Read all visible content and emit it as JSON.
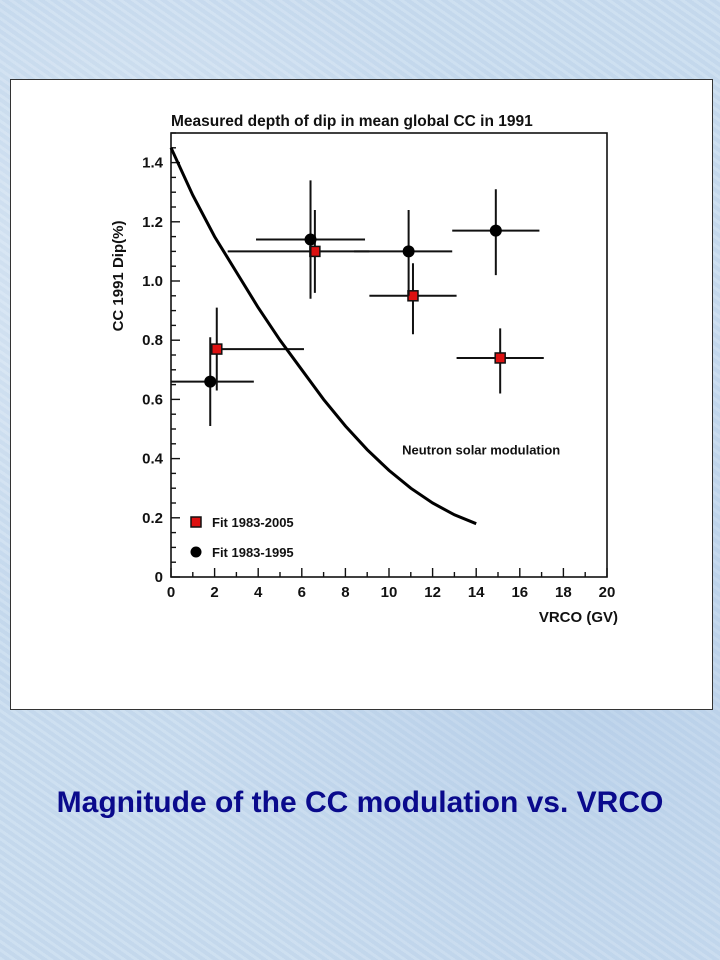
{
  "caption": "Magnitude of the CC modulation vs. VRCO",
  "chart_data": {
    "type": "scatter",
    "title": "Measured depth of dip in mean global CC in 1991",
    "xlabel": "VRCO (GV)",
    "ylabel": "CC 1991 Dip(%)",
    "xlim": [
      0,
      20
    ],
    "ylim": [
      0,
      1.5
    ],
    "xticks": [
      0,
      2,
      4,
      6,
      8,
      10,
      12,
      14,
      16,
      18,
      20
    ],
    "yticks": [
      0,
      0.2,
      0.4,
      0.6,
      0.8,
      1.0,
      1.2,
      1.4
    ],
    "ytick_labels": [
      "0",
      "0.2",
      "0.4",
      "0.6",
      "0.8",
      "1.0",
      "1.2",
      "1.4"
    ],
    "grid": false,
    "legend": "bottom-left",
    "series": [
      {
        "name": "Fit 1983-2005",
        "marker": "square",
        "color": "#dd1111",
        "points": [
          {
            "x": 2.1,
            "y": 0.77,
            "xerr": [
              0.2,
              4.0
            ],
            "yerr": [
              0.14,
              0.14
            ]
          },
          {
            "x": 6.6,
            "y": 1.1,
            "xerr": [
              4.0,
              2.5
            ],
            "yerr": [
              0.14,
              0.14
            ]
          },
          {
            "x": 11.1,
            "y": 0.95,
            "xerr": [
              2.0,
              2.0
            ],
            "yerr": [
              0.13,
              0.11
            ]
          },
          {
            "x": 15.1,
            "y": 0.74,
            "xerr": [
              2.0,
              2.0
            ],
            "yerr": [
              0.12,
              0.1
            ]
          }
        ]
      },
      {
        "name": "Fit 1983-1995",
        "marker": "circle",
        "color": "#000000",
        "points": [
          {
            "x": 1.8,
            "y": 0.66,
            "xerr": [
              1.8,
              2.0
            ],
            "yerr": [
              0.15,
              0.15
            ]
          },
          {
            "x": 6.4,
            "y": 1.14,
            "xerr": [
              2.5,
              2.5
            ],
            "yerr": [
              0.2,
              0.2
            ]
          },
          {
            "x": 10.9,
            "y": 1.1,
            "xerr": [
              2.5,
              2.0
            ],
            "yerr": [
              0.15,
              0.14
            ]
          },
          {
            "x": 14.9,
            "y": 1.17,
            "xerr": [
              2.0,
              2.0
            ],
            "yerr": [
              0.15,
              0.14
            ]
          }
        ]
      },
      {
        "name": "Neutron solar modulation",
        "type": "line",
        "color": "#000000",
        "points": [
          {
            "x": 0,
            "y": 1.45
          },
          {
            "x": 1,
            "y": 1.29
          },
          {
            "x": 2,
            "y": 1.15
          },
          {
            "x": 3,
            "y": 1.03
          },
          {
            "x": 4,
            "y": 0.91
          },
          {
            "x": 5,
            "y": 0.8
          },
          {
            "x": 6,
            "y": 0.7
          },
          {
            "x": 7,
            "y": 0.6
          },
          {
            "x": 8,
            "y": 0.51
          },
          {
            "x": 9,
            "y": 0.43
          },
          {
            "x": 10,
            "y": 0.36
          },
          {
            "x": 11,
            "y": 0.3
          },
          {
            "x": 12,
            "y": 0.25
          },
          {
            "x": 13,
            "y": 0.21
          },
          {
            "x": 14,
            "y": 0.18
          }
        ]
      }
    ],
    "annotations": [
      {
        "text": "Neutron solar modulation",
        "x": 10.6,
        "y": 0.43
      }
    ]
  }
}
